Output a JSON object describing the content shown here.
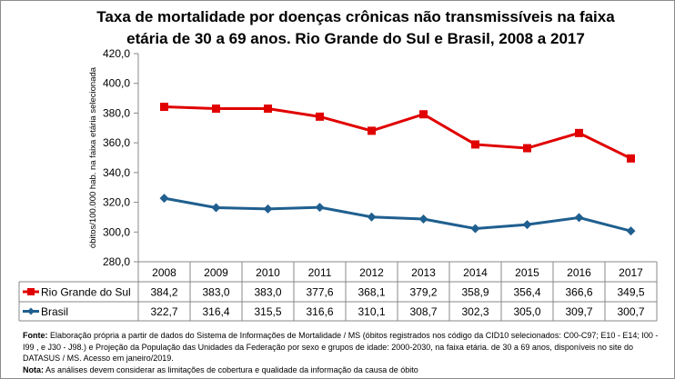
{
  "chart_data": {
    "type": "line",
    "title": "Taxa de mortalidade por doenças crônicas não transmissíveis na faixa etária de 30 a 69 anos. Rio Grande do Sul e Brasil, 2008 a 2017",
    "ylabel": "óbitos/100.000 hab. na faixa etária selecionada",
    "xlabel": "",
    "ylim": [
      280,
      420
    ],
    "yticks": [
      "280,0",
      "300,0",
      "320,0",
      "340,0",
      "360,0",
      "380,0",
      "400,0",
      "420,0"
    ],
    "categories": [
      "2008",
      "2009",
      "2010",
      "2011",
      "2012",
      "2013",
      "2014",
      "2015",
      "2016",
      "2017"
    ],
    "grid": false,
    "legend": "data-table",
    "series": [
      {
        "name": "Rio Grande do Sul",
        "color": "#e00000",
        "marker": "square",
        "values": [
          384.2,
          383.0,
          383.0,
          377.6,
          368.1,
          379.2,
          358.9,
          356.4,
          366.6,
          349.5
        ],
        "labels": [
          "384,2",
          "383,0",
          "383,0",
          "377,6",
          "368,1",
          "379,2",
          "358,9",
          "356,4",
          "366,6",
          "349,5"
        ]
      },
      {
        "name": "Brasil",
        "color": "#1f5f8f",
        "marker": "diamond",
        "values": [
          322.7,
          316.4,
          315.5,
          316.6,
          310.1,
          308.7,
          302.3,
          305.0,
          309.7,
          300.7
        ],
        "labels": [
          "322,7",
          "316,4",
          "315,5",
          "316,6",
          "310,1",
          "308,7",
          "302,3",
          "305,0",
          "309,7",
          "300,7"
        ]
      }
    ]
  },
  "notes": {
    "fonte_label": "Fonte:",
    "fonte_text": " Elaboração própria a partir de dados do Sistema de Informações de Mortalidade / MS (óbitos registrados nos código da CID10 selecionados: C00-C97; E10 - E14; I00 - I99 , e J30 - J98.) e Projeção da População das Unidades da Federação por sexo e grupos de idade: 2000-2030, na faixa etária. de 30 a 69 anos, disponíveis no site do DATASUS / MS.  Acesso em janeiro/2019.",
    "nota_label": "Nota:",
    "nota_text": "  As análises devem considerar as limitações de cobertura e qualidade da informação da causa de óbito"
  }
}
